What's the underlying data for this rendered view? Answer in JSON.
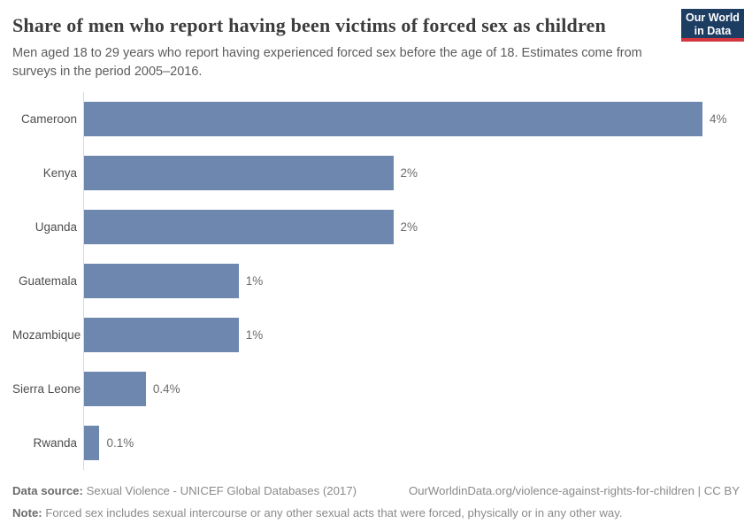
{
  "header": {
    "title": "Share of men who report having been victims of forced sex as children",
    "subtitle": "Men aged 18 to 29 years who report having experienced forced sex before the age of 18. Estimates come from surveys in the period 2005–2016.",
    "logo": {
      "line1": "Our World",
      "line2": "in Data",
      "bg_color": "#1d3d63",
      "accent_color": "#d4353f"
    }
  },
  "chart_data": {
    "type": "bar",
    "orientation": "horizontal",
    "title": "Share of men who report having been victims of forced sex as children",
    "categories": [
      "Cameroon",
      "Kenya",
      "Uganda",
      "Guatemala",
      "Mozambique",
      "Sierra Leone",
      "Rwanda"
    ],
    "values": [
      4,
      2,
      2,
      1,
      1,
      0.4,
      0.1
    ],
    "value_labels": [
      "4%",
      "2%",
      "2%",
      "1%",
      "1%",
      "0.4%",
      "0.1%"
    ],
    "unit": "%",
    "xlabel": "",
    "ylabel": "",
    "xlim": [
      0,
      4
    ],
    "grid": false,
    "legend": "none",
    "bar_color": "#6e87ae",
    "axis_line_color": "#d8d8d8"
  },
  "footer": {
    "datasource_label": "Data source:",
    "datasource_value": "Sexual Violence - UNICEF Global Databases (2017)",
    "link": "OurWorldinData.org/violence-against-rights-for-children | CC BY",
    "note_label": "Note:",
    "note_value": "Forced sex includes sexual intercourse or any other sexual acts that were forced, physically or in any other way."
  }
}
